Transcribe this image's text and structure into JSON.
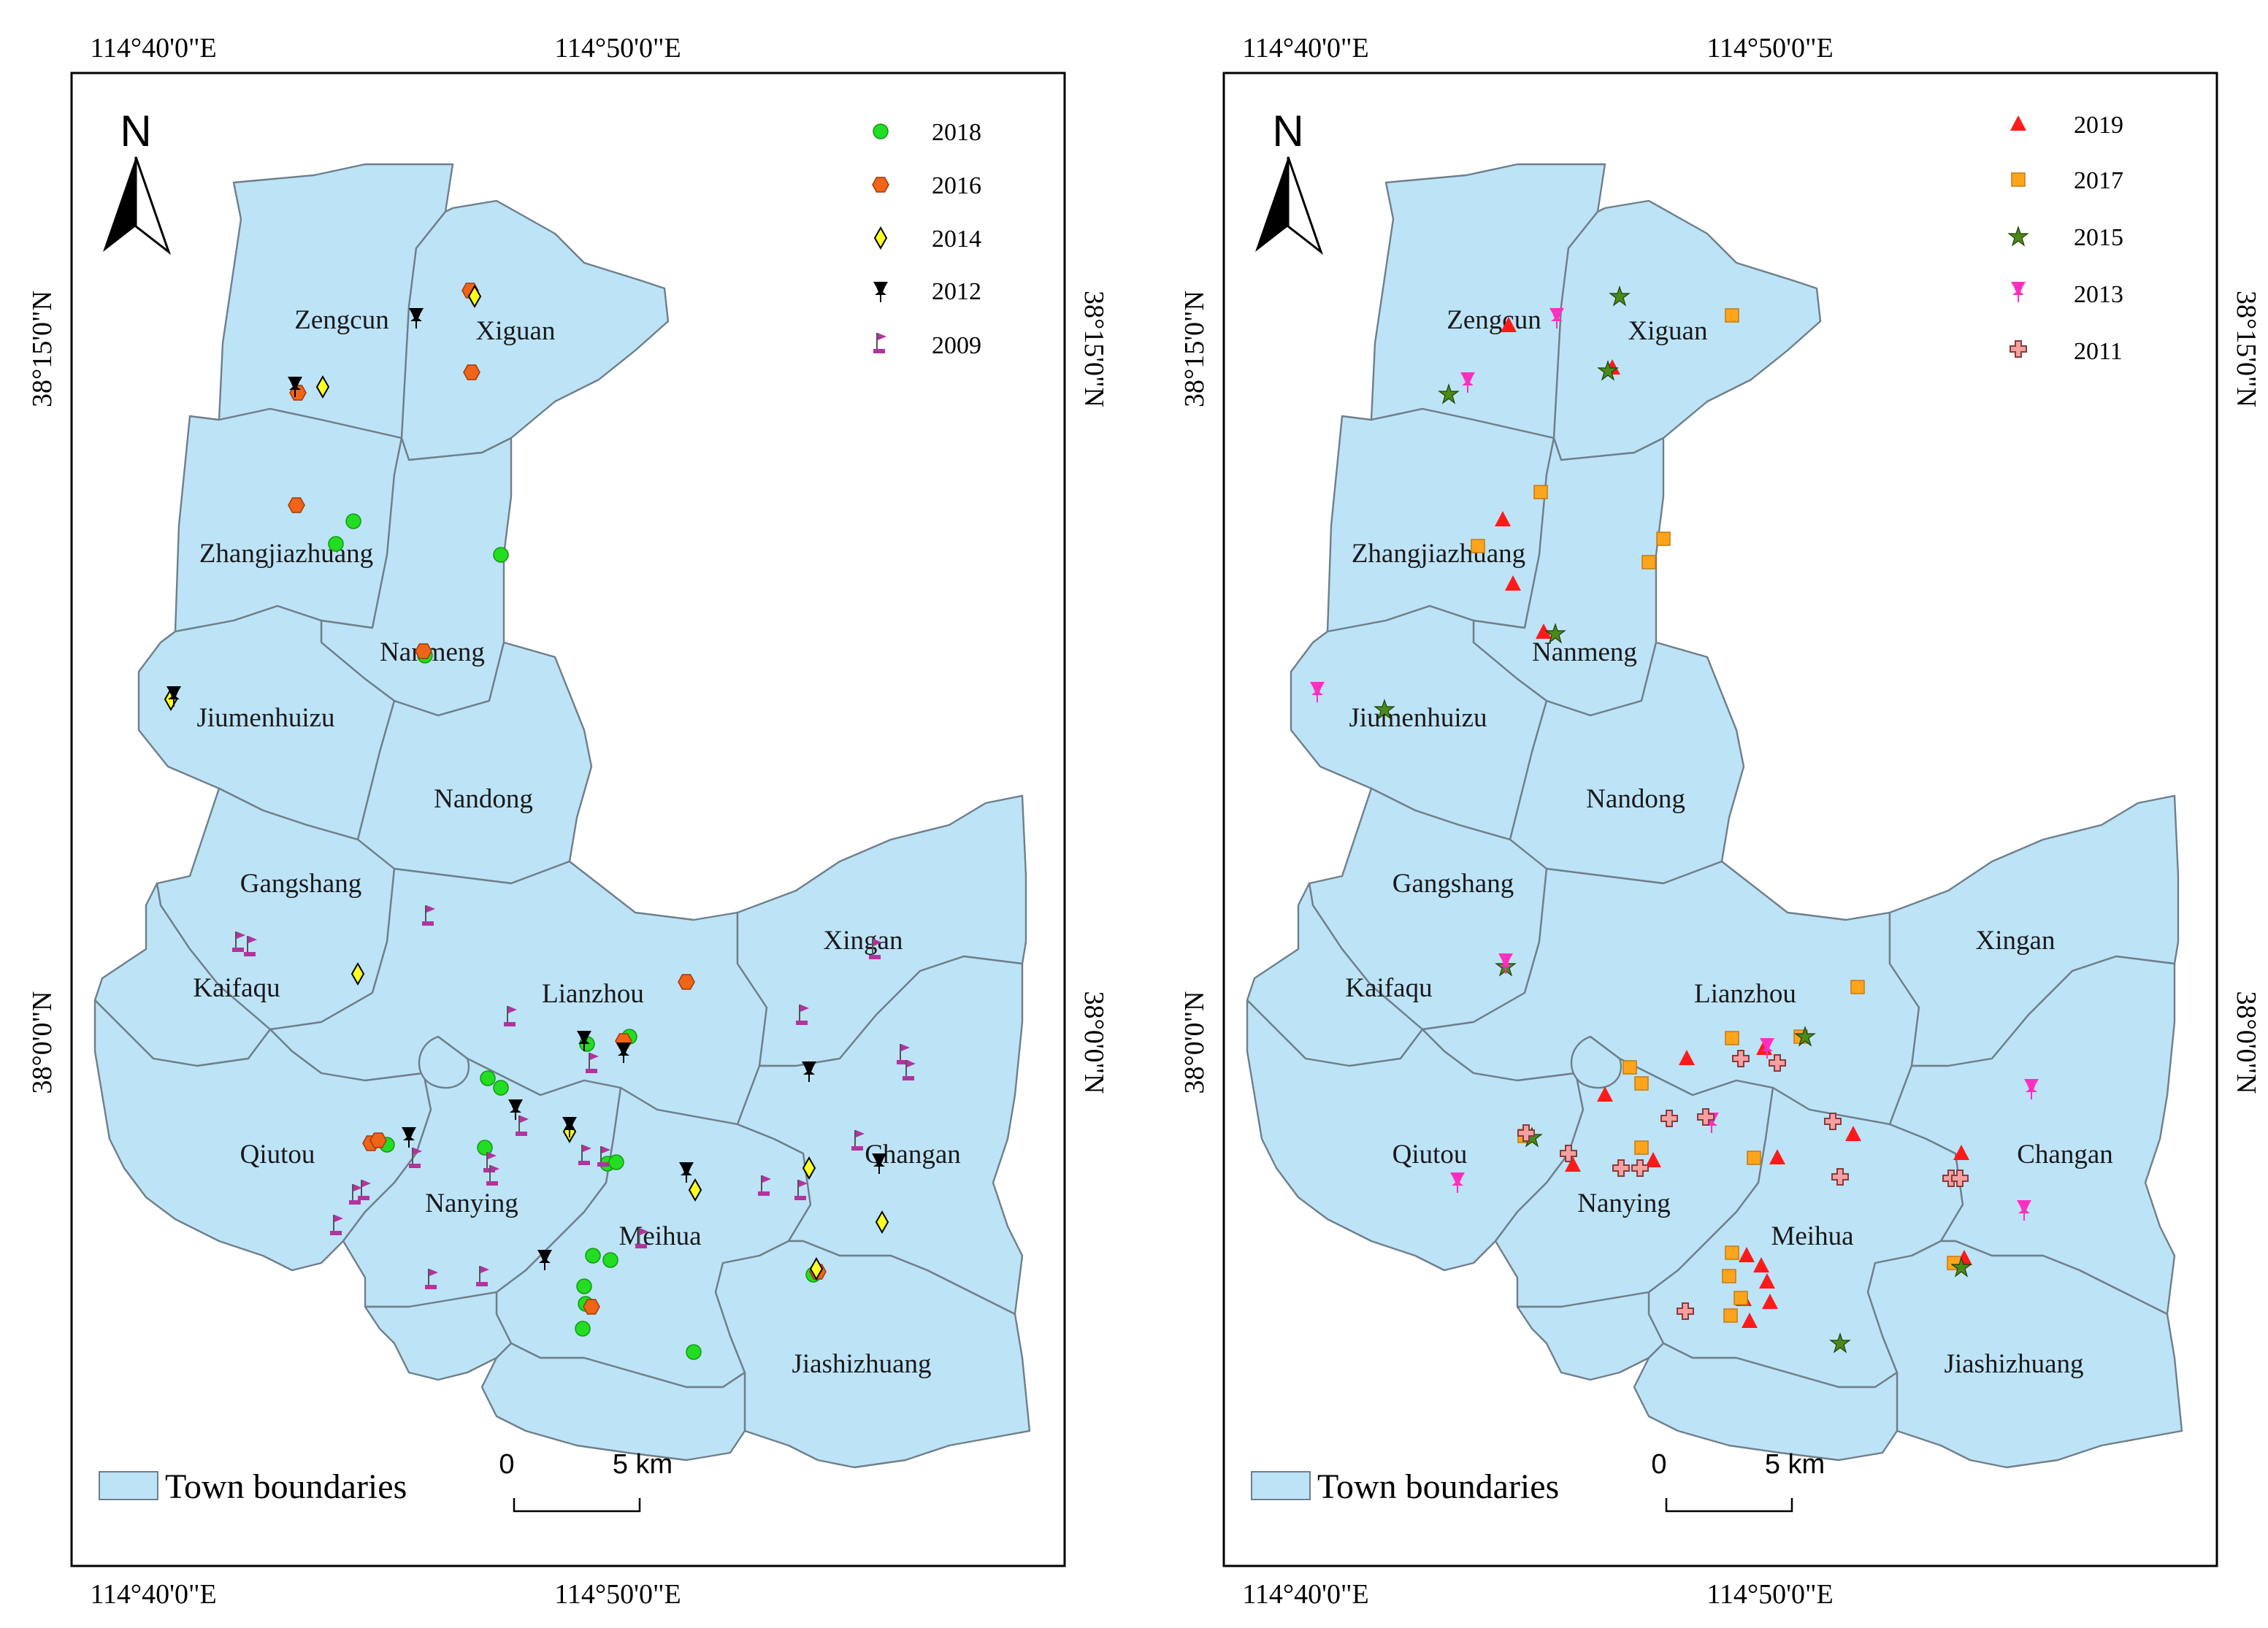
{
  "coordinate_labels": {
    "top_left": "114°40'0\"E",
    "top_right": "114°50'0\"E",
    "bottom_left": "114°40'0\"E",
    "bottom_right": "114°50'0\"E",
    "lat_north": "38°15'0\"N",
    "lat_south": "38°0'0\"N"
  },
  "north_arrow": "N",
  "towns": [
    "Zengcun",
    "Xiguan",
    "Zhangjiazhuang",
    "Nanmeng",
    "Jiumenhuizu",
    "Nandong",
    "Gangshang",
    "Kaifaqu",
    "Lianzhou",
    "Xingan",
    "Qiutou",
    "Nanying",
    "Meihua",
    "Changan",
    "Jiashizhuang"
  ],
  "left_map": {
    "legend": [
      {
        "year": "2018",
        "symbol": "green-circle",
        "color": "#22dd22"
      },
      {
        "year": "2016",
        "symbol": "orange-hexagon",
        "color": "#f06418"
      },
      {
        "year": "2014",
        "symbol": "yellow-diamond",
        "color": "#ffff22"
      },
      {
        "year": "2012",
        "symbol": "black-pushpin",
        "color": "#000000"
      },
      {
        "year": "2009",
        "symbol": "purple-flag",
        "color": "#b3339e"
      }
    ]
  },
  "right_map": {
    "legend": [
      {
        "year": "2019",
        "symbol": "red-triangle",
        "color": "#ff1a1a"
      },
      {
        "year": "2017",
        "symbol": "orange-square",
        "color": "#ffa51c"
      },
      {
        "year": "2015",
        "symbol": "green-star",
        "color": "#4a8a1a"
      },
      {
        "year": "2013",
        "symbol": "magenta-pushpin",
        "color": "#ff2ec0"
      },
      {
        "year": "2011",
        "symbol": "pink-cross",
        "color": "#f4a0a0"
      }
    ]
  },
  "boundary_legend": "Town boundaries",
  "scale_bar": {
    "zero": "0",
    "end": "5 km"
  },
  "colors": {
    "town_fill": "#bde3f7",
    "town_stroke": "#6f7f8a"
  }
}
